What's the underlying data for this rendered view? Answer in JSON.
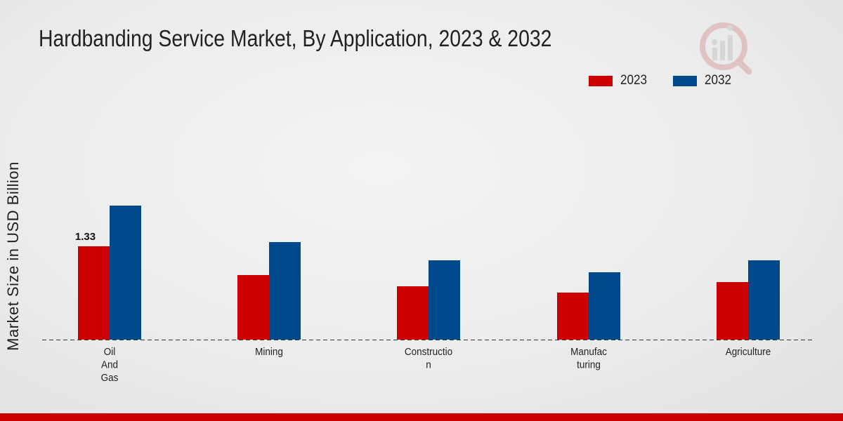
{
  "chart_data": {
    "type": "bar",
    "title": "Hardbanding Service Market, By Application, 2023 & 2032",
    "ylabel": "Market Size in USD Billion",
    "xlabel": "",
    "categories": [
      "Oil\nAnd\nGas",
      "Mining",
      "Constructio\nn",
      "Manufac\nturing",
      "Agriculture"
    ],
    "series": [
      {
        "name": "2023",
        "color": "#cc0000",
        "values": [
          1.33,
          0.92,
          0.76,
          0.67,
          0.82
        ]
      },
      {
        "name": "2032",
        "color": "#004a8c",
        "values": [
          1.91,
          1.39,
          1.13,
          0.96,
          1.13
        ]
      }
    ],
    "data_labels": [
      {
        "series": 0,
        "index": 0,
        "text": "1.33"
      }
    ],
    "ylim": [
      0,
      3.0
    ],
    "grid": false,
    "legend_position": "top-right"
  }
}
